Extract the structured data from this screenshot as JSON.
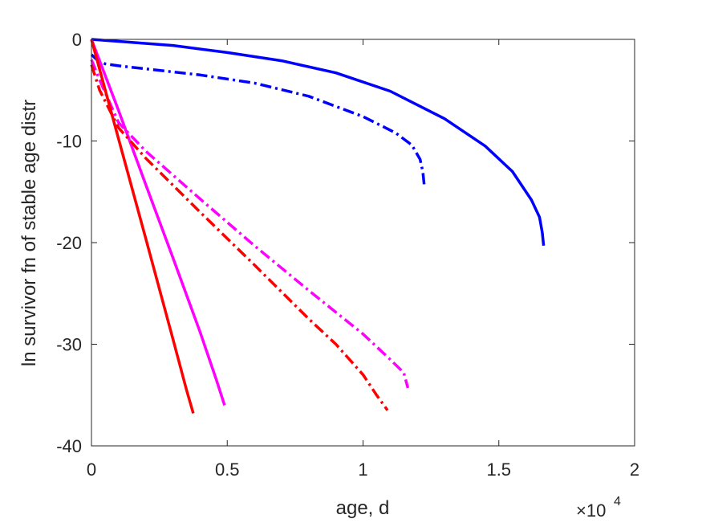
{
  "chart_data": {
    "type": "line",
    "title": "",
    "xlabel": "age, d",
    "ylabel": "ln survivor fn of stable age distr",
    "x_exponent_label": "×10",
    "x_exponent_power": "4",
    "xlim": [
      0,
      20000
    ],
    "ylim": [
      -40,
      0
    ],
    "xticks": [
      0,
      5000,
      10000,
      15000,
      20000
    ],
    "xtick_labels": [
      "0",
      "0.5",
      "1",
      "1.5",
      "2"
    ],
    "yticks": [
      0,
      -10,
      -20,
      -30,
      -40
    ],
    "ytick_labels": [
      "0",
      "-10",
      "-20",
      "-30",
      "-40"
    ],
    "grid": false,
    "legend": "none",
    "series": [
      {
        "color": "#0000ff",
        "style": "solid",
        "x": [
          0,
          1000,
          3000,
          5000,
          7000,
          9000,
          11000,
          13000,
          14500,
          15500,
          16200,
          16500,
          16600,
          16650
        ],
        "y": [
          0,
          -0.2,
          -0.6,
          -1.3,
          -2.1,
          -3.3,
          -5.1,
          -7.8,
          -10.5,
          -13.0,
          -15.8,
          -17.5,
          -19.0,
          -20.3
        ]
      },
      {
        "color": "#0000ff",
        "style": "dashdot",
        "x": [
          0,
          200,
          500,
          1000,
          2000,
          4000,
          6000,
          8000,
          10000,
          11200,
          11800,
          12100,
          12200,
          12250
        ],
        "y": [
          -1.5,
          -2.0,
          -2.4,
          -2.6,
          -2.9,
          -3.5,
          -4.3,
          -5.6,
          -7.6,
          -9.2,
          -10.4,
          -11.8,
          -13.0,
          -14.3
        ]
      },
      {
        "color": "#ff00ff",
        "style": "solid",
        "x": [
          0,
          1000,
          2000,
          3000,
          4000,
          4600,
          4900
        ],
        "y": [
          0,
          -7.0,
          -14.3,
          -21.5,
          -28.8,
          -33.5,
          -36.0
        ]
      },
      {
        "color": "#ff00ff",
        "style": "dashdot",
        "x": [
          0,
          300,
          1000,
          2000,
          4000,
          6000,
          8000,
          10000,
          11000,
          11500,
          11650
        ],
        "y": [
          -2.0,
          -4.0,
          -8.2,
          -11.0,
          -15.7,
          -20.3,
          -24.7,
          -29.0,
          -31.5,
          -32.8,
          -34.3
        ]
      },
      {
        "color": "#ff0000",
        "style": "solid",
        "x": [
          0,
          1000,
          2000,
          3000,
          3500,
          3750
        ],
        "y": [
          0,
          -9.8,
          -19.6,
          -29.5,
          -34.5,
          -36.8
        ]
      },
      {
        "color": "#ff0000",
        "style": "dashdot",
        "x": [
          0,
          300,
          1000,
          2000,
          4000,
          6000,
          8000,
          9000,
          10000,
          10500,
          10900
        ],
        "y": [
          -2.5,
          -5.0,
          -8.7,
          -11.7,
          -17.0,
          -22.2,
          -27.5,
          -30.0,
          -33.0,
          -35.0,
          -36.5
        ]
      }
    ]
  }
}
